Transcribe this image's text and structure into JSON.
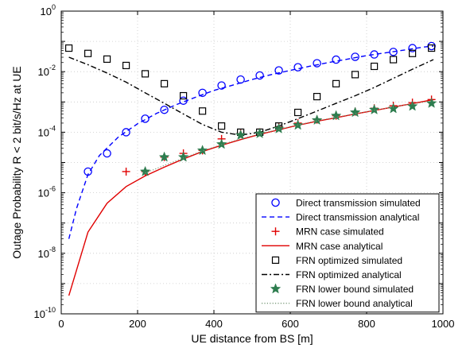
{
  "chart_data": {
    "type": "line",
    "title": "",
    "xlabel": "UE distance from BS [m]",
    "ylabel": "Outage Probability R < 2 bit/s/Hz at UE",
    "xlim": [
      0,
      1000
    ],
    "ylim_log10": [
      -10,
      0
    ],
    "y_scale": "log",
    "x_ticks": [
      "0",
      "200",
      "400",
      "600",
      "800",
      "1000"
    ],
    "y_ticks": [
      {
        "base": "10",
        "exp": "0"
      },
      {
        "base": "10",
        "exp": "-2"
      },
      {
        "base": "10",
        "exp": "-4"
      },
      {
        "base": "10",
        "exp": "-6"
      },
      {
        "base": "10",
        "exp": "-8"
      },
      {
        "base": "10",
        "exp": "-10"
      }
    ],
    "grid": true,
    "legend_position": "bottom-right",
    "series": [
      {
        "name": "Direct transmission simulated",
        "style": "marker-circle",
        "color": "#0000ff",
        "x": [
          70,
          120,
          170,
          220,
          270,
          320,
          370,
          420,
          470,
          520,
          570,
          620,
          670,
          720,
          770,
          820,
          870,
          920,
          970
        ],
        "y": [
          5e-06,
          2e-05,
          0.0001,
          0.00028,
          0.00055,
          0.0011,
          0.002,
          0.0035,
          0.0055,
          0.0075,
          0.011,
          0.014,
          0.019,
          0.025,
          0.031,
          0.037,
          0.045,
          0.06,
          0.07
        ]
      },
      {
        "name": "Direct transmission analytical",
        "style": "dashed",
        "color": "#0000ff",
        "x": [
          20,
          40,
          70,
          100,
          150,
          200,
          250,
          300,
          350,
          400,
          450,
          500,
          550,
          600,
          650,
          700,
          750,
          800,
          850,
          900,
          950,
          975
        ],
        "y": [
          3e-08,
          3e-07,
          4e-06,
          1.7e-05,
          7e-05,
          0.00019,
          0.00042,
          0.0008,
          0.0014,
          0.0024,
          0.0036,
          0.0055,
          0.008,
          0.011,
          0.015,
          0.02,
          0.026,
          0.034,
          0.042,
          0.052,
          0.065,
          0.07
        ]
      },
      {
        "name": "MRN case simulated",
        "style": "marker-plus",
        "color": "#e00000",
        "x": [
          170,
          220,
          270,
          320,
          370,
          420,
          470,
          520,
          570,
          620,
          670,
          720,
          770,
          820,
          870,
          920,
          970
        ],
        "y": [
          5e-06,
          5e-06,
          1.5e-05,
          2e-05,
          2.5e-05,
          6e-05,
          9e-05,
          0.0001,
          0.00015,
          0.0002,
          0.00026,
          0.00035,
          0.00048,
          0.00062,
          0.00075,
          0.00095,
          0.0012
        ]
      },
      {
        "name": "MRN case analytical",
        "style": "solid",
        "color": "#e00000",
        "x": [
          20,
          70,
          120,
          170,
          220,
          270,
          320,
          370,
          420,
          470,
          520,
          570,
          620,
          670,
          720,
          770,
          820,
          870,
          920,
          975
        ],
        "y": [
          4e-10,
          5e-08,
          4.5e-07,
          1.6e-06,
          3.6e-06,
          7e-06,
          1.3e-05,
          2.3e-05,
          3.7e-05,
          5.7e-05,
          8.5e-05,
          0.00012,
          0.00017,
          0.00023,
          0.0003,
          0.0004,
          0.00052,
          0.00068,
          0.00088,
          0.0012
        ]
      },
      {
        "name": "FRN optimized simulated",
        "style": "marker-square",
        "color": "#000000",
        "x": [
          20,
          70,
          120,
          170,
          220,
          270,
          320,
          370,
          420,
          470,
          520,
          570,
          620,
          670,
          720,
          770,
          820,
          870,
          920,
          970
        ],
        "y": [
          0.06,
          0.04,
          0.026,
          0.016,
          0.0085,
          0.004,
          0.0016,
          0.0005,
          0.00016,
          0.0001,
          0.0001,
          0.00016,
          0.00045,
          0.0015,
          0.004,
          0.008,
          0.015,
          0.025,
          0.04,
          0.06
        ]
      },
      {
        "name": "FRN optimized analytical",
        "style": "dashdot",
        "color": "#000000",
        "x": [
          20,
          70,
          120,
          170,
          220,
          270,
          320,
          370,
          420,
          470,
          520,
          570,
          620,
          670,
          720,
          770,
          820,
          870,
          920,
          975
        ],
        "y": [
          0.03,
          0.017,
          0.009,
          0.0045,
          0.002,
          0.0009,
          0.0004,
          0.00018,
          0.0001,
          8e-05,
          0.0001,
          0.00016,
          0.00028,
          0.0005,
          0.0009,
          0.0016,
          0.003,
          0.006,
          0.012,
          0.025
        ]
      },
      {
        "name": "FRN lower bound simulated",
        "style": "marker-star",
        "color": "#2e7d4f",
        "x": [
          220,
          270,
          320,
          370,
          420,
          470,
          520,
          570,
          620,
          670,
          720,
          770,
          820,
          870,
          920,
          970
        ],
        "y": [
          5e-06,
          1.5e-05,
          1.5e-05,
          2.5e-05,
          4e-05,
          8e-05,
          9e-05,
          0.00013,
          0.00017,
          0.00025,
          0.00035,
          0.00045,
          0.00055,
          0.0006,
          0.00072,
          0.0009
        ]
      },
      {
        "name": "FRN lower bound analytical",
        "style": "dotted",
        "color": "#7a9a7a",
        "x": [
          220,
          270,
          320,
          370,
          420,
          470,
          520,
          570,
          620,
          670,
          720,
          770,
          820,
          870,
          920,
          975
        ],
        "y": [
          4.5e-06,
          8e-06,
          1.4e-05,
          2.4e-05,
          3.9e-05,
          6e-05,
          8.8e-05,
          0.000125,
          0.000175,
          0.00024,
          0.00031,
          0.00041,
          0.00053,
          0.00068,
          0.00086,
          0.0011
        ]
      }
    ]
  }
}
